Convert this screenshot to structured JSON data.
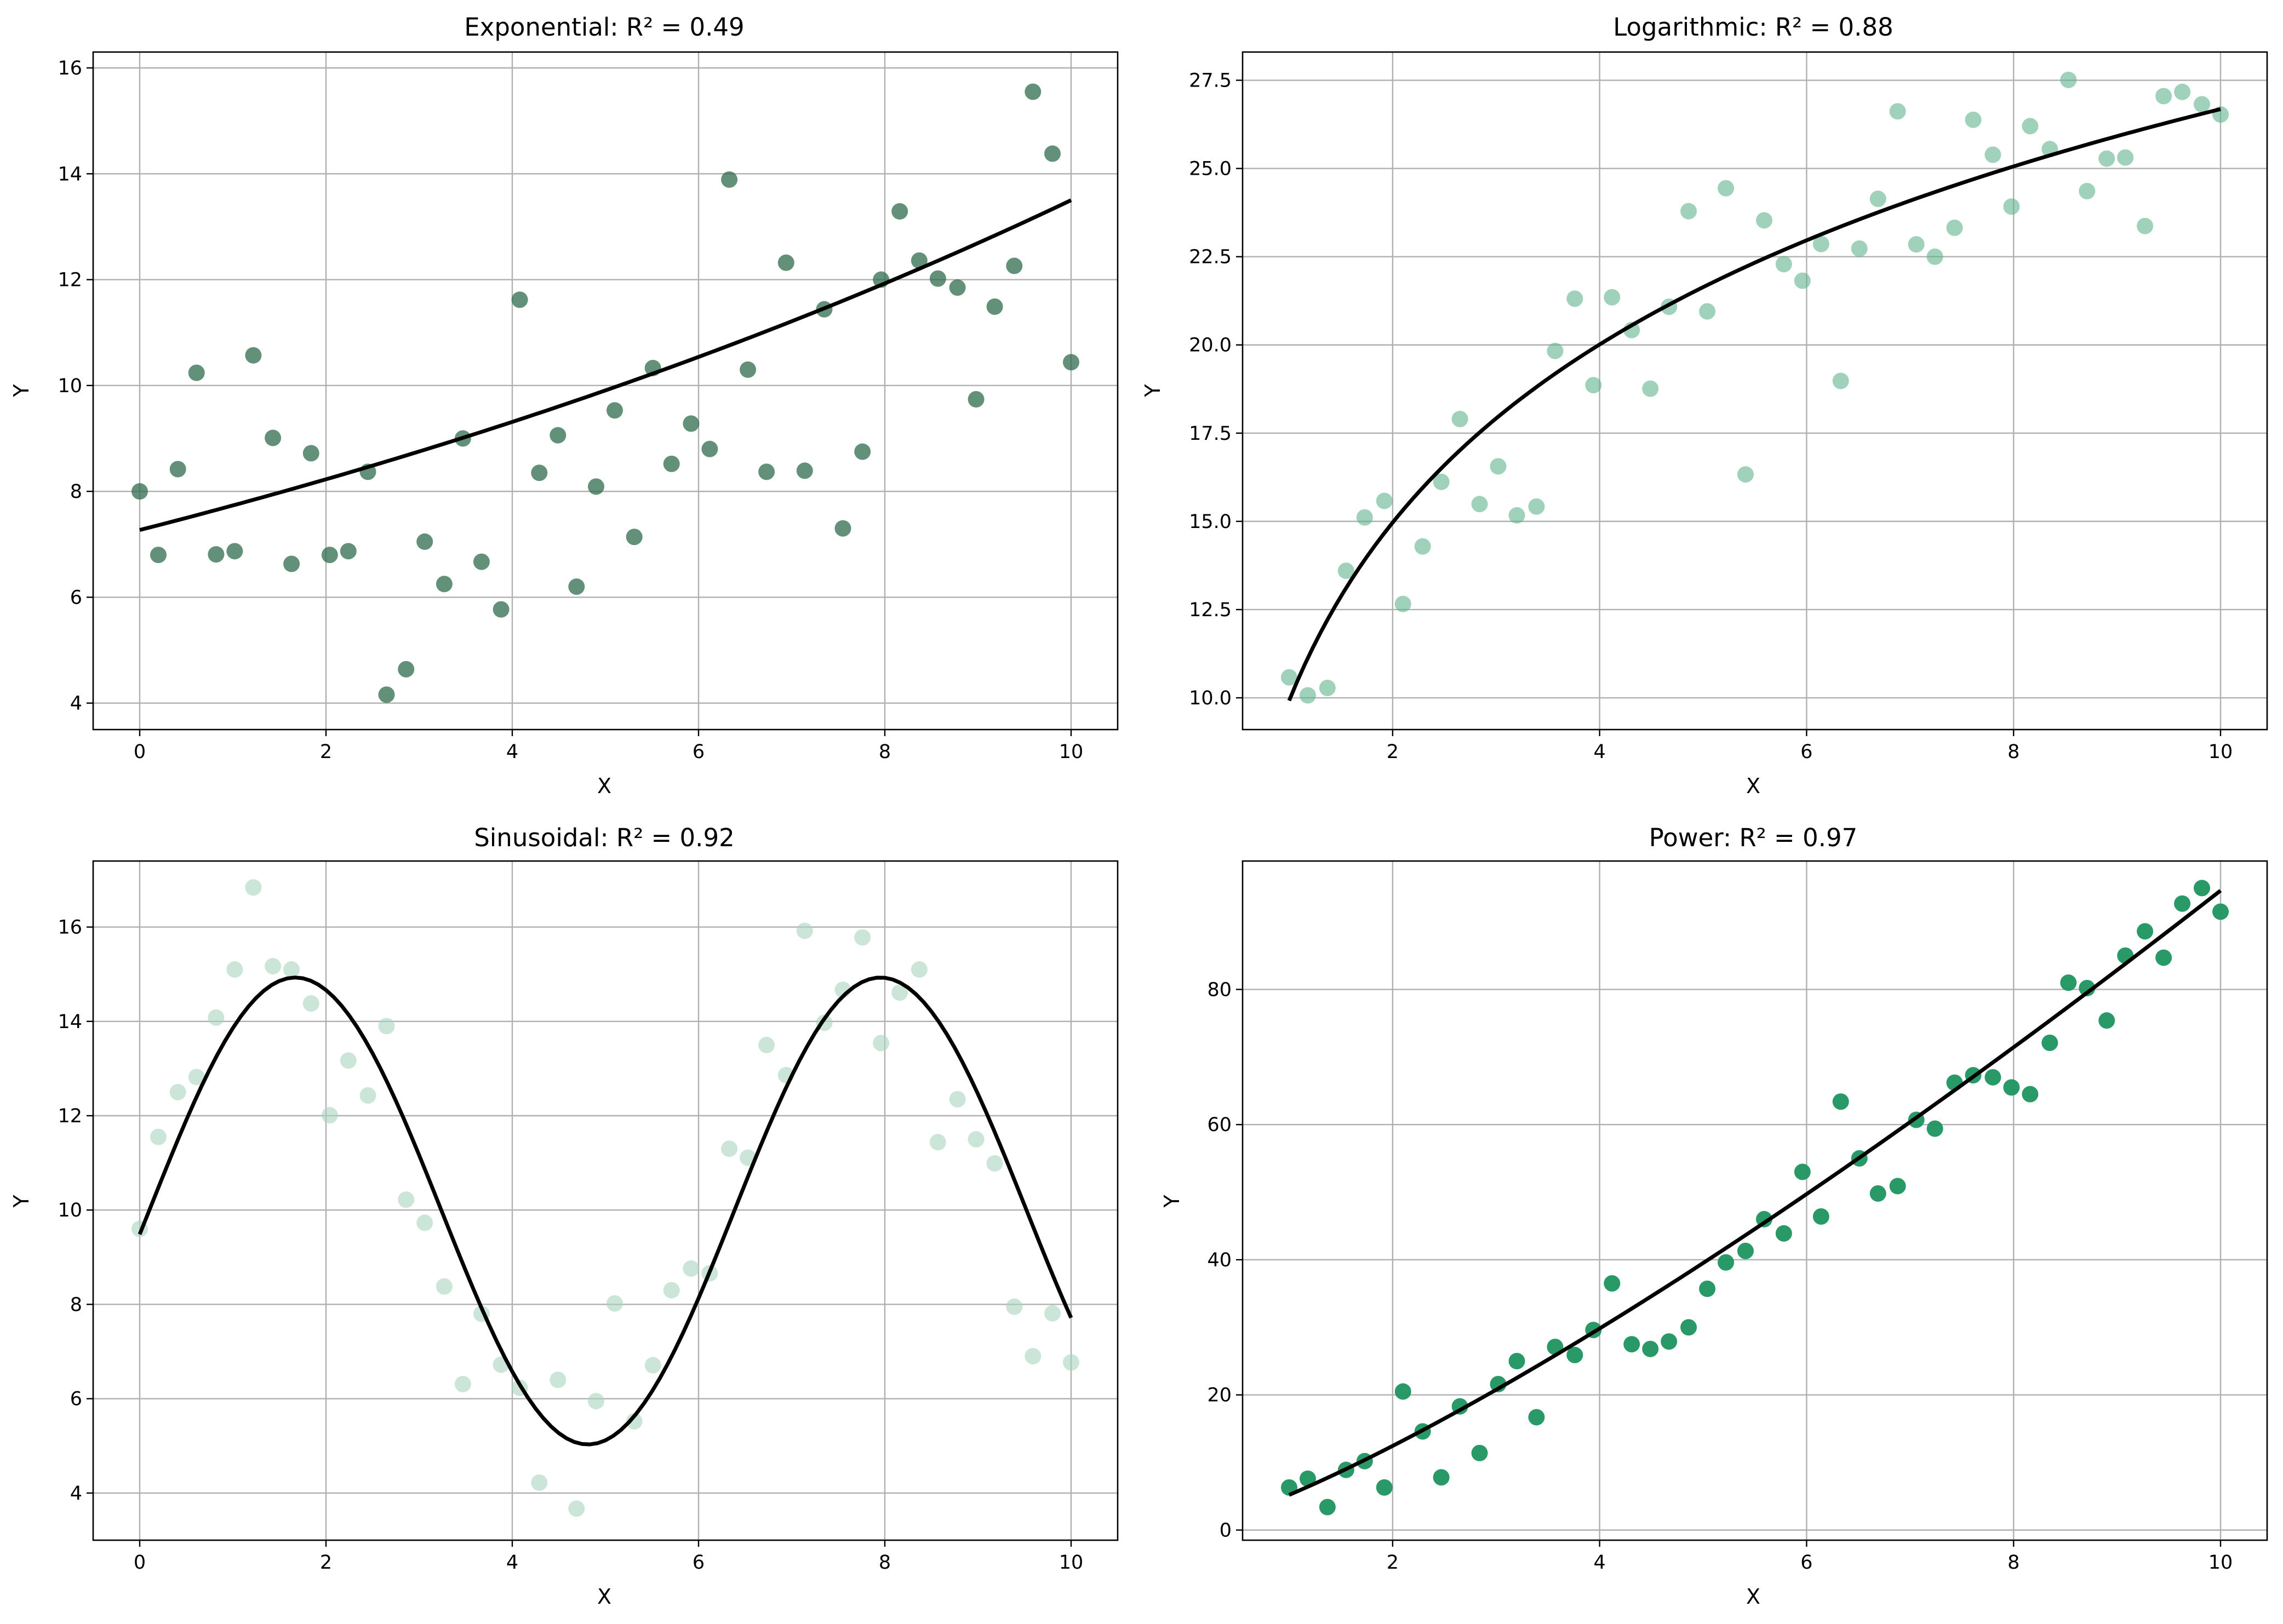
{
  "chart_data": [
    {
      "type": "scatter",
      "title": "Exponential: R² = 0.49",
      "xlabel": "X",
      "ylabel": "Y",
      "xlim": [
        -0.5,
        10.5
      ],
      "ylim": [
        3.5,
        16.3
      ],
      "xticks": [
        0,
        2,
        4,
        6,
        8,
        10
      ],
      "yticks": [
        4,
        6,
        8,
        10,
        12,
        14,
        16
      ],
      "grid": true,
      "point_color": "#2e6b4c",
      "point_opacity": 0.75,
      "fit": {
        "kind": "exponential",
        "a": 7.27,
        "b": 0.0619,
        "x_range": [
          0,
          10
        ],
        "color": "#000000"
      },
      "points": {
        "x": [
          0,
          0.2,
          0.41,
          0.61,
          0.82,
          1.02,
          1.22,
          1.43,
          1.63,
          1.84,
          2.04,
          2.24,
          2.45,
          2.65,
          2.86,
          3.06,
          3.27,
          3.47,
          3.67,
          3.88,
          4.08,
          4.29,
          4.49,
          4.69,
          4.9,
          5.1,
          5.31,
          5.51,
          5.71,
          5.92,
          6.12,
          6.33,
          6.53,
          6.73,
          6.94,
          7.14,
          7.35,
          7.55,
          7.76,
          7.96,
          8.16,
          8.37,
          8.57,
          8.78,
          8.98,
          9.18,
          9.39,
          9.59,
          9.8,
          10
        ],
        "y": [
          8.0,
          6.8,
          8.42,
          10.24,
          6.81,
          6.87,
          10.57,
          9.01,
          6.63,
          8.72,
          6.8,
          6.87,
          8.37,
          4.16,
          4.64,
          7.05,
          6.25,
          9.0,
          6.67,
          5.77,
          11.62,
          8.35,
          9.06,
          6.2,
          8.09,
          9.53,
          7.14,
          10.33,
          8.52,
          9.28,
          8.8,
          13.89,
          10.3,
          8.37,
          12.32,
          8.39,
          11.44,
          7.3,
          8.75,
          12.0,
          13.29,
          12.36,
          12.02,
          11.85,
          9.74,
          11.49,
          12.26,
          15.55,
          14.38,
          10.44
        ]
      }
    },
    {
      "type": "scatter",
      "title": "Logarithmic: R² = 0.88",
      "xlabel": "X",
      "ylabel": "Y",
      "xlim": [
        0.55,
        10.45
      ],
      "ylim": [
        9.1,
        28.3
      ],
      "xticks": [
        2,
        4,
        6,
        8,
        10
      ],
      "yticks": [
        10.0,
        12.5,
        15.0,
        17.5,
        20.0,
        22.5,
        25.0,
        27.5
      ],
      "ytick_labels": [
        "10.0",
        "12.5",
        "15.0",
        "17.5",
        "20.0",
        "22.5",
        "25.0",
        "27.5"
      ],
      "grid": true,
      "point_color": "#5fb38e",
      "point_opacity": 0.6,
      "fit": {
        "kind": "logarithmic",
        "a": 9.92,
        "b": 7.28,
        "x_range": [
          1,
          10
        ],
        "color": "#000000"
      },
      "points": {
        "x": [
          1.0,
          1.18,
          1.37,
          1.55,
          1.73,
          1.92,
          2.1,
          2.29,
          2.47,
          2.65,
          2.84,
          3.02,
          3.2,
          3.39,
          3.57,
          3.76,
          3.94,
          4.12,
          4.31,
          4.49,
          4.67,
          4.86,
          5.04,
          5.22,
          5.41,
          5.59,
          5.78,
          5.96,
          6.14,
          6.33,
          6.51,
          6.69,
          6.88,
          7.06,
          7.24,
          7.43,
          7.61,
          7.8,
          7.98,
          8.16,
          8.35,
          8.53,
          8.71,
          8.9,
          9.08,
          9.27,
          9.45,
          9.63,
          9.82,
          10.0
        ],
        "y": [
          10.58,
          10.07,
          10.28,
          13.6,
          15.11,
          15.58,
          12.66,
          14.29,
          16.12,
          17.9,
          15.49,
          16.56,
          15.17,
          15.42,
          19.83,
          21.31,
          18.86,
          21.35,
          20.42,
          18.76,
          21.08,
          23.79,
          20.95,
          24.44,
          16.33,
          23.53,
          22.29,
          21.82,
          22.86,
          18.98,
          22.73,
          24.14,
          26.62,
          22.85,
          22.5,
          23.32,
          26.38,
          25.39,
          23.92,
          26.2,
          25.55,
          27.51,
          24.36,
          25.28,
          25.31,
          23.37,
          27.05,
          27.17,
          26.82,
          26.53
        ]
      }
    },
    {
      "type": "scatter",
      "title": "Sinusoidal: R² = 0.92",
      "xlabel": "X",
      "ylabel": "Y",
      "xlim": [
        -0.5,
        10.5
      ],
      "ylim": [
        3.0,
        17.4
      ],
      "xticks": [
        0,
        2,
        4,
        6,
        8,
        10
      ],
      "yticks": [
        4,
        6,
        8,
        10,
        12,
        14,
        16
      ],
      "grid": true,
      "point_color": "#a9d6c0",
      "point_opacity": 0.6,
      "fit": {
        "kind": "sinusoidal",
        "a": 4.95,
        "b": 1.0,
        "c": -0.1,
        "d": 9.98,
        "x_range": [
          0,
          10
        ],
        "color": "#000000"
      },
      "points": {
        "x": [
          0,
          0.2,
          0.41,
          0.61,
          0.82,
          1.02,
          1.22,
          1.43,
          1.63,
          1.84,
          2.04,
          2.24,
          2.45,
          2.65,
          2.86,
          3.06,
          3.27,
          3.47,
          3.67,
          3.88,
          4.08,
          4.29,
          4.49,
          4.69,
          4.9,
          5.1,
          5.31,
          5.51,
          5.71,
          5.92,
          6.12,
          6.33,
          6.53,
          6.73,
          6.94,
          7.14,
          7.35,
          7.55,
          7.76,
          7.96,
          8.16,
          8.37,
          8.57,
          8.78,
          8.98,
          9.18,
          9.39,
          9.59,
          9.8,
          10
        ],
        "y": [
          9.6,
          11.55,
          12.5,
          12.82,
          14.08,
          15.1,
          16.84,
          15.17,
          15.1,
          14.38,
          12.01,
          13.17,
          12.43,
          13.9,
          10.22,
          9.73,
          8.38,
          6.31,
          7.8,
          6.72,
          6.23,
          4.22,
          6.4,
          3.67,
          5.95,
          8.02,
          5.52,
          6.71,
          8.3,
          8.76,
          8.66,
          11.3,
          11.11,
          13.5,
          12.86,
          15.92,
          13.97,
          14.67,
          15.78,
          13.54,
          14.61,
          15.1,
          11.44,
          12.35,
          11.5,
          10.99,
          7.95,
          6.9,
          7.81,
          6.77
        ]
      }
    },
    {
      "type": "scatter",
      "title": "Power: R² = 0.97",
      "xlabel": "X",
      "ylabel": "Y",
      "xlim": [
        0.55,
        10.45
      ],
      "ylim": [
        -1.5,
        99.0
      ],
      "xticks": [
        2,
        4,
        6,
        8,
        10
      ],
      "yticks": [
        0,
        20,
        40,
        60,
        80
      ],
      "grid": true,
      "point_color": "#1f9460",
      "point_opacity": 0.95,
      "fit": {
        "kind": "power",
        "a": 5.2,
        "b": 1.26,
        "x_range": [
          1,
          10
        ],
        "color": "#000000"
      },
      "points": {
        "x": [
          1.0,
          1.18,
          1.37,
          1.55,
          1.73,
          1.92,
          2.1,
          2.29,
          2.47,
          2.65,
          2.84,
          3.02,
          3.2,
          3.39,
          3.57,
          3.76,
          3.94,
          4.12,
          4.31,
          4.49,
          4.67,
          4.86,
          5.04,
          5.22,
          5.41,
          5.59,
          5.78,
          5.96,
          6.14,
          6.33,
          6.51,
          6.69,
          6.88,
          7.06,
          7.24,
          7.43,
          7.61,
          7.8,
          7.98,
          8.16,
          8.35,
          8.53,
          8.71,
          8.9,
          9.08,
          9.27,
          9.45,
          9.63,
          9.82,
          10.0
        ],
        "y": [
          6.3,
          7.6,
          3.4,
          8.9,
          10.2,
          6.3,
          20.5,
          14.6,
          7.8,
          18.3,
          11.4,
          21.6,
          25.0,
          16.7,
          27.1,
          25.9,
          29.6,
          36.5,
          27.5,
          26.8,
          27.9,
          30.0,
          35.7,
          39.6,
          41.3,
          46.0,
          43.9,
          53.0,
          46.4,
          63.4,
          55.0,
          49.8,
          50.9,
          60.7,
          59.4,
          66.2,
          67.3,
          67.0,
          65.5,
          64.5,
          72.1,
          81.0,
          80.2,
          75.4,
          85.0,
          88.6,
          84.7,
          92.7,
          95.0,
          91.5
        ]
      }
    }
  ]
}
